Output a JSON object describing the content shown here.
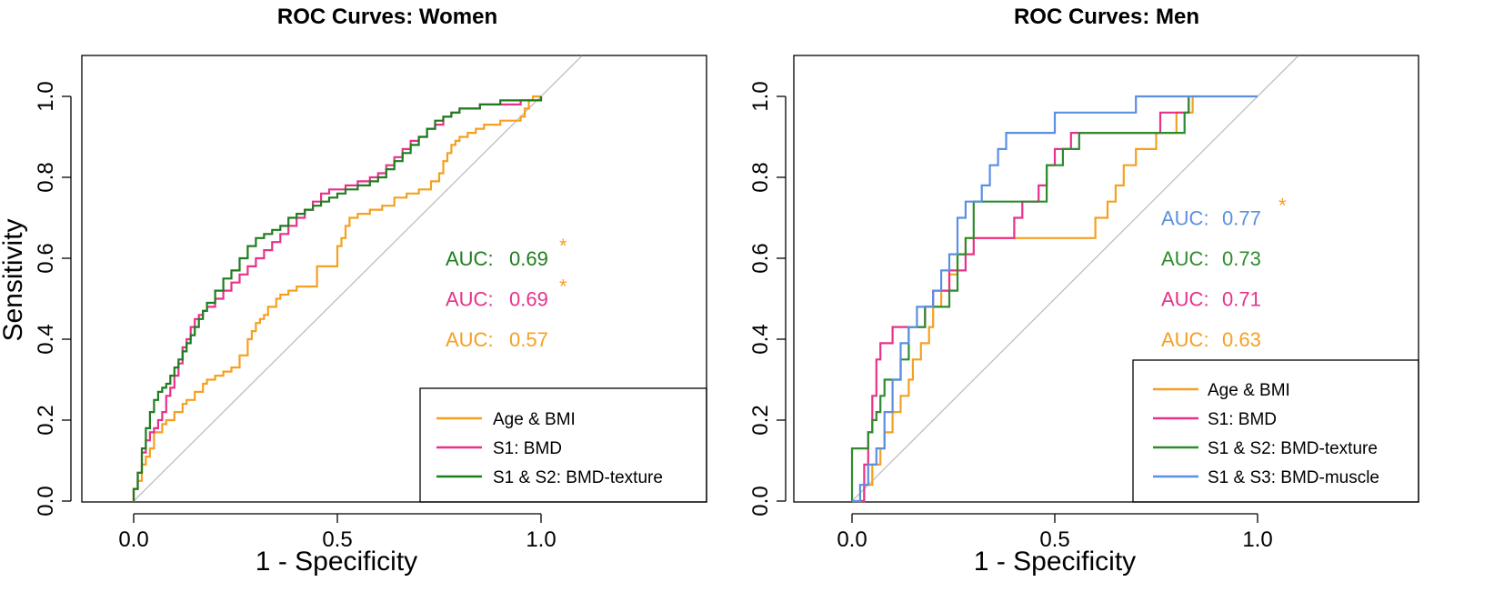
{
  "colors": {
    "age_bmi": "#F5A020",
    "bmd": "#E8318A",
    "texture_women": "#1E7D1E",
    "texture_men": "#2E8B2E",
    "muscle": "#5B8FE0",
    "diagonal": "#BFBFBF",
    "star": "#F5A020"
  },
  "chart_data": [
    {
      "type": "line",
      "title": "ROC Curves: Women",
      "xlabel": "1 - Specificity",
      "ylabel": "Sensitivity",
      "xlim": [
        -0.125,
        1.42
      ],
      "ylim": [
        -0.02,
        1.1
      ],
      "xticks": [
        0.0,
        0.5,
        1.0
      ],
      "xtick_labels": [
        "0.0",
        "0.5",
        "1.0"
      ],
      "yticks": [
        0.0,
        0.2,
        0.4,
        0.6,
        0.8,
        1.0
      ],
      "ytick_labels": [
        "0.0",
        "0.2",
        "0.4",
        "0.6",
        "0.8",
        "1.0"
      ],
      "diagonal": true,
      "legend_position": "bottom-right",
      "auc_labels": [
        {
          "prefix": "AUC:",
          "value": "0.69",
          "color_key": "texture_women",
          "significant": true,
          "y": 0.6
        },
        {
          "prefix": "AUC:",
          "value": "0.69",
          "color_key": "bmd",
          "significant": true,
          "y": 0.5
        },
        {
          "prefix": "AUC:",
          "value": "0.57",
          "color_key": "age_bmi",
          "significant": false,
          "y": 0.4
        }
      ],
      "series": [
        {
          "name": "Age & BMI",
          "color_key": "age_bmi",
          "x": [
            0.0,
            0.0,
            0.01,
            0.02,
            0.02,
            0.03,
            0.04,
            0.05,
            0.05,
            0.07,
            0.08,
            0.1,
            0.1,
            0.12,
            0.12,
            0.13,
            0.15,
            0.17,
            0.18,
            0.2,
            0.22,
            0.24,
            0.26,
            0.28,
            0.29,
            0.3,
            0.31,
            0.32,
            0.33,
            0.35,
            0.36,
            0.38,
            0.38,
            0.4,
            0.41,
            0.45,
            0.5,
            0.51,
            0.52,
            0.53,
            0.55,
            0.58,
            0.61,
            0.64,
            0.67,
            0.7,
            0.73,
            0.75,
            0.76,
            0.77,
            0.78,
            0.79,
            0.8,
            0.82,
            0.84,
            0.86,
            0.88,
            0.9,
            0.93,
            0.95,
            0.96,
            0.97,
            0.98,
            1.0
          ],
          "y": [
            0.0,
            0.03,
            0.05,
            0.07,
            0.09,
            0.11,
            0.13,
            0.15,
            0.17,
            0.19,
            0.2,
            0.21,
            0.22,
            0.23,
            0.24,
            0.25,
            0.27,
            0.29,
            0.3,
            0.31,
            0.32,
            0.33,
            0.36,
            0.4,
            0.42,
            0.44,
            0.45,
            0.46,
            0.48,
            0.5,
            0.51,
            0.51,
            0.52,
            0.53,
            0.53,
            0.58,
            0.63,
            0.65,
            0.68,
            0.7,
            0.71,
            0.72,
            0.73,
            0.75,
            0.76,
            0.77,
            0.79,
            0.81,
            0.84,
            0.86,
            0.88,
            0.89,
            0.9,
            0.91,
            0.92,
            0.93,
            0.93,
            0.94,
            0.94,
            0.95,
            0.97,
            0.99,
            1.0,
            1.0
          ]
        },
        {
          "name": "S1: BMD",
          "color_key": "bmd",
          "x": [
            0.0,
            0.0,
            0.01,
            0.02,
            0.03,
            0.04,
            0.05,
            0.06,
            0.07,
            0.08,
            0.09,
            0.1,
            0.11,
            0.12,
            0.13,
            0.14,
            0.15,
            0.16,
            0.17,
            0.18,
            0.2,
            0.22,
            0.24,
            0.26,
            0.28,
            0.3,
            0.32,
            0.34,
            0.36,
            0.38,
            0.4,
            0.42,
            0.44,
            0.46,
            0.48,
            0.5,
            0.52,
            0.55,
            0.58,
            0.6,
            0.62,
            0.64,
            0.66,
            0.68,
            0.7,
            0.72,
            0.74,
            0.76,
            0.78,
            0.8,
            0.85,
            0.9,
            0.95,
            1.0
          ],
          "y": [
            0.0,
            0.03,
            0.07,
            0.12,
            0.15,
            0.17,
            0.18,
            0.2,
            0.22,
            0.26,
            0.28,
            0.31,
            0.34,
            0.38,
            0.4,
            0.43,
            0.45,
            0.46,
            0.47,
            0.48,
            0.5,
            0.52,
            0.54,
            0.56,
            0.58,
            0.6,
            0.62,
            0.64,
            0.66,
            0.68,
            0.7,
            0.72,
            0.74,
            0.76,
            0.77,
            0.77,
            0.78,
            0.79,
            0.8,
            0.81,
            0.83,
            0.85,
            0.87,
            0.89,
            0.9,
            0.92,
            0.93,
            0.95,
            0.96,
            0.97,
            0.98,
            0.98,
            0.99,
            1.0
          ]
        },
        {
          "name": "S1 & S2: BMD-texture",
          "color_key": "texture_women",
          "x": [
            0.0,
            0.0,
            0.01,
            0.02,
            0.03,
            0.04,
            0.05,
            0.06,
            0.07,
            0.08,
            0.09,
            0.1,
            0.11,
            0.12,
            0.13,
            0.14,
            0.15,
            0.16,
            0.17,
            0.18,
            0.2,
            0.22,
            0.24,
            0.26,
            0.28,
            0.3,
            0.32,
            0.34,
            0.36,
            0.38,
            0.4,
            0.42,
            0.44,
            0.46,
            0.48,
            0.5,
            0.52,
            0.55,
            0.58,
            0.6,
            0.62,
            0.64,
            0.66,
            0.68,
            0.7,
            0.72,
            0.74,
            0.76,
            0.78,
            0.8,
            0.85,
            0.9,
            0.95,
            1.0
          ],
          "y": [
            0.0,
            0.03,
            0.07,
            0.13,
            0.18,
            0.22,
            0.25,
            0.27,
            0.28,
            0.29,
            0.31,
            0.33,
            0.35,
            0.37,
            0.39,
            0.41,
            0.43,
            0.45,
            0.47,
            0.49,
            0.52,
            0.55,
            0.57,
            0.6,
            0.63,
            0.65,
            0.66,
            0.67,
            0.68,
            0.7,
            0.71,
            0.72,
            0.73,
            0.74,
            0.75,
            0.76,
            0.77,
            0.78,
            0.79,
            0.8,
            0.82,
            0.84,
            0.86,
            0.88,
            0.9,
            0.92,
            0.94,
            0.95,
            0.96,
            0.97,
            0.98,
            0.99,
            0.99,
            1.0
          ]
        }
      ]
    },
    {
      "type": "line",
      "title": "ROC Curves: Men",
      "xlabel": "1 - Specificity",
      "ylabel": "",
      "xlim": [
        -0.125,
        1.42
      ],
      "ylim": [
        -0.02,
        1.1
      ],
      "xticks": [
        0.0,
        0.5,
        1.0
      ],
      "xtick_labels": [
        "0.0",
        "0.5",
        "1.0"
      ],
      "yticks": [
        0.0,
        0.2,
        0.4,
        0.6,
        0.8,
        1.0
      ],
      "ytick_labels": [
        "0.0",
        "0.2",
        "0.4",
        "0.6",
        "0.8",
        "1.0"
      ],
      "diagonal": true,
      "legend_position": "bottom-right",
      "auc_labels": [
        {
          "prefix": "AUC:",
          "value": "0.77",
          "color_key": "muscle",
          "significant": true,
          "y": 0.7
        },
        {
          "prefix": "AUC:",
          "value": "0.73",
          "color_key": "texture_men",
          "significant": false,
          "y": 0.6
        },
        {
          "prefix": "AUC:",
          "value": "0.71",
          "color_key": "bmd",
          "significant": false,
          "y": 0.5
        },
        {
          "prefix": "AUC:",
          "value": "0.63",
          "color_key": "age_bmi",
          "significant": false,
          "y": 0.4
        }
      ],
      "series": [
        {
          "name": "Age & BMI",
          "color_key": "age_bmi",
          "x": [
            0.02,
            0.03,
            0.05,
            0.07,
            0.08,
            0.1,
            0.12,
            0.14,
            0.15,
            0.17,
            0.19,
            0.2,
            0.22,
            0.24,
            0.26,
            0.28,
            0.3,
            0.33,
            0.36,
            0.39,
            0.42,
            0.45,
            0.48,
            0.52,
            0.56,
            0.6,
            0.63,
            0.65,
            0.67,
            0.7,
            0.72,
            0.75,
            0.78,
            0.8,
            0.82,
            0.84,
            0.86
          ],
          "y": [
            0.0,
            0.04,
            0.09,
            0.13,
            0.17,
            0.22,
            0.26,
            0.3,
            0.35,
            0.39,
            0.43,
            0.48,
            0.52,
            0.56,
            0.61,
            0.65,
            0.65,
            0.65,
            0.65,
            0.65,
            0.65,
            0.65,
            0.65,
            0.65,
            0.65,
            0.7,
            0.74,
            0.78,
            0.83,
            0.87,
            0.87,
            0.91,
            0.91,
            0.96,
            0.96,
            1.0,
            1.0
          ]
        },
        {
          "name": "S1: BMD",
          "color_key": "bmd",
          "x": [
            0.02,
            0.03,
            0.04,
            0.05,
            0.06,
            0.07,
            0.08,
            0.1,
            0.12,
            0.14,
            0.16,
            0.18,
            0.2,
            0.22,
            0.24,
            0.26,
            0.28,
            0.3,
            0.32,
            0.34,
            0.36,
            0.38,
            0.4,
            0.42,
            0.44,
            0.46,
            0.48,
            0.5,
            0.52,
            0.54,
            0.56,
            0.6,
            0.64,
            0.68,
            0.72,
            0.76,
            0.8,
            0.83
          ],
          "y": [
            0.0,
            0.09,
            0.17,
            0.26,
            0.35,
            0.39,
            0.39,
            0.43,
            0.43,
            0.43,
            0.43,
            0.48,
            0.52,
            0.52,
            0.57,
            0.57,
            0.61,
            0.65,
            0.65,
            0.65,
            0.65,
            0.65,
            0.7,
            0.74,
            0.74,
            0.78,
            0.83,
            0.87,
            0.87,
            0.91,
            0.91,
            0.91,
            0.91,
            0.91,
            0.91,
            0.96,
            0.96,
            1.0
          ]
        },
        {
          "name": "S1 & S2: BMD-texture",
          "color_key": "texture_men",
          "x": [
            0.0,
            0.0,
            0.02,
            0.04,
            0.05,
            0.06,
            0.07,
            0.08,
            0.1,
            0.12,
            0.14,
            0.16,
            0.18,
            0.2,
            0.22,
            0.24,
            0.26,
            0.28,
            0.3,
            0.33,
            0.36,
            0.4,
            0.44,
            0.48,
            0.52,
            0.56,
            0.6,
            0.64,
            0.68,
            0.72,
            0.76,
            0.8,
            0.82,
            0.83
          ],
          "y": [
            0.0,
            0.13,
            0.13,
            0.17,
            0.2,
            0.22,
            0.26,
            0.3,
            0.3,
            0.35,
            0.43,
            0.43,
            0.48,
            0.48,
            0.48,
            0.52,
            0.61,
            0.65,
            0.74,
            0.74,
            0.74,
            0.74,
            0.74,
            0.83,
            0.87,
            0.91,
            0.91,
            0.91,
            0.91,
            0.91,
            0.91,
            0.91,
            0.96,
            1.0
          ]
        },
        {
          "name": "S1 & S3: BMD-muscle",
          "color_key": "muscle",
          "x": [
            0.0,
            0.02,
            0.04,
            0.06,
            0.08,
            0.1,
            0.12,
            0.14,
            0.16,
            0.18,
            0.2,
            0.22,
            0.24,
            0.26,
            0.28,
            0.3,
            0.32,
            0.34,
            0.36,
            0.38,
            0.4,
            0.42,
            0.44,
            0.46,
            0.5,
            0.55,
            0.6,
            0.65,
            0.7,
            0.75,
            0.8,
            0.85,
            0.9,
            0.95,
            1.0
          ],
          "y": [
            0.0,
            0.04,
            0.09,
            0.13,
            0.22,
            0.3,
            0.39,
            0.43,
            0.48,
            0.48,
            0.52,
            0.57,
            0.61,
            0.7,
            0.74,
            0.74,
            0.78,
            0.83,
            0.87,
            0.91,
            0.91,
            0.91,
            0.91,
            0.91,
            0.96,
            0.96,
            0.96,
            0.96,
            1.0,
            1.0,
            1.0,
            1.0,
            1.0,
            1.0,
            1.0
          ]
        }
      ]
    }
  ]
}
